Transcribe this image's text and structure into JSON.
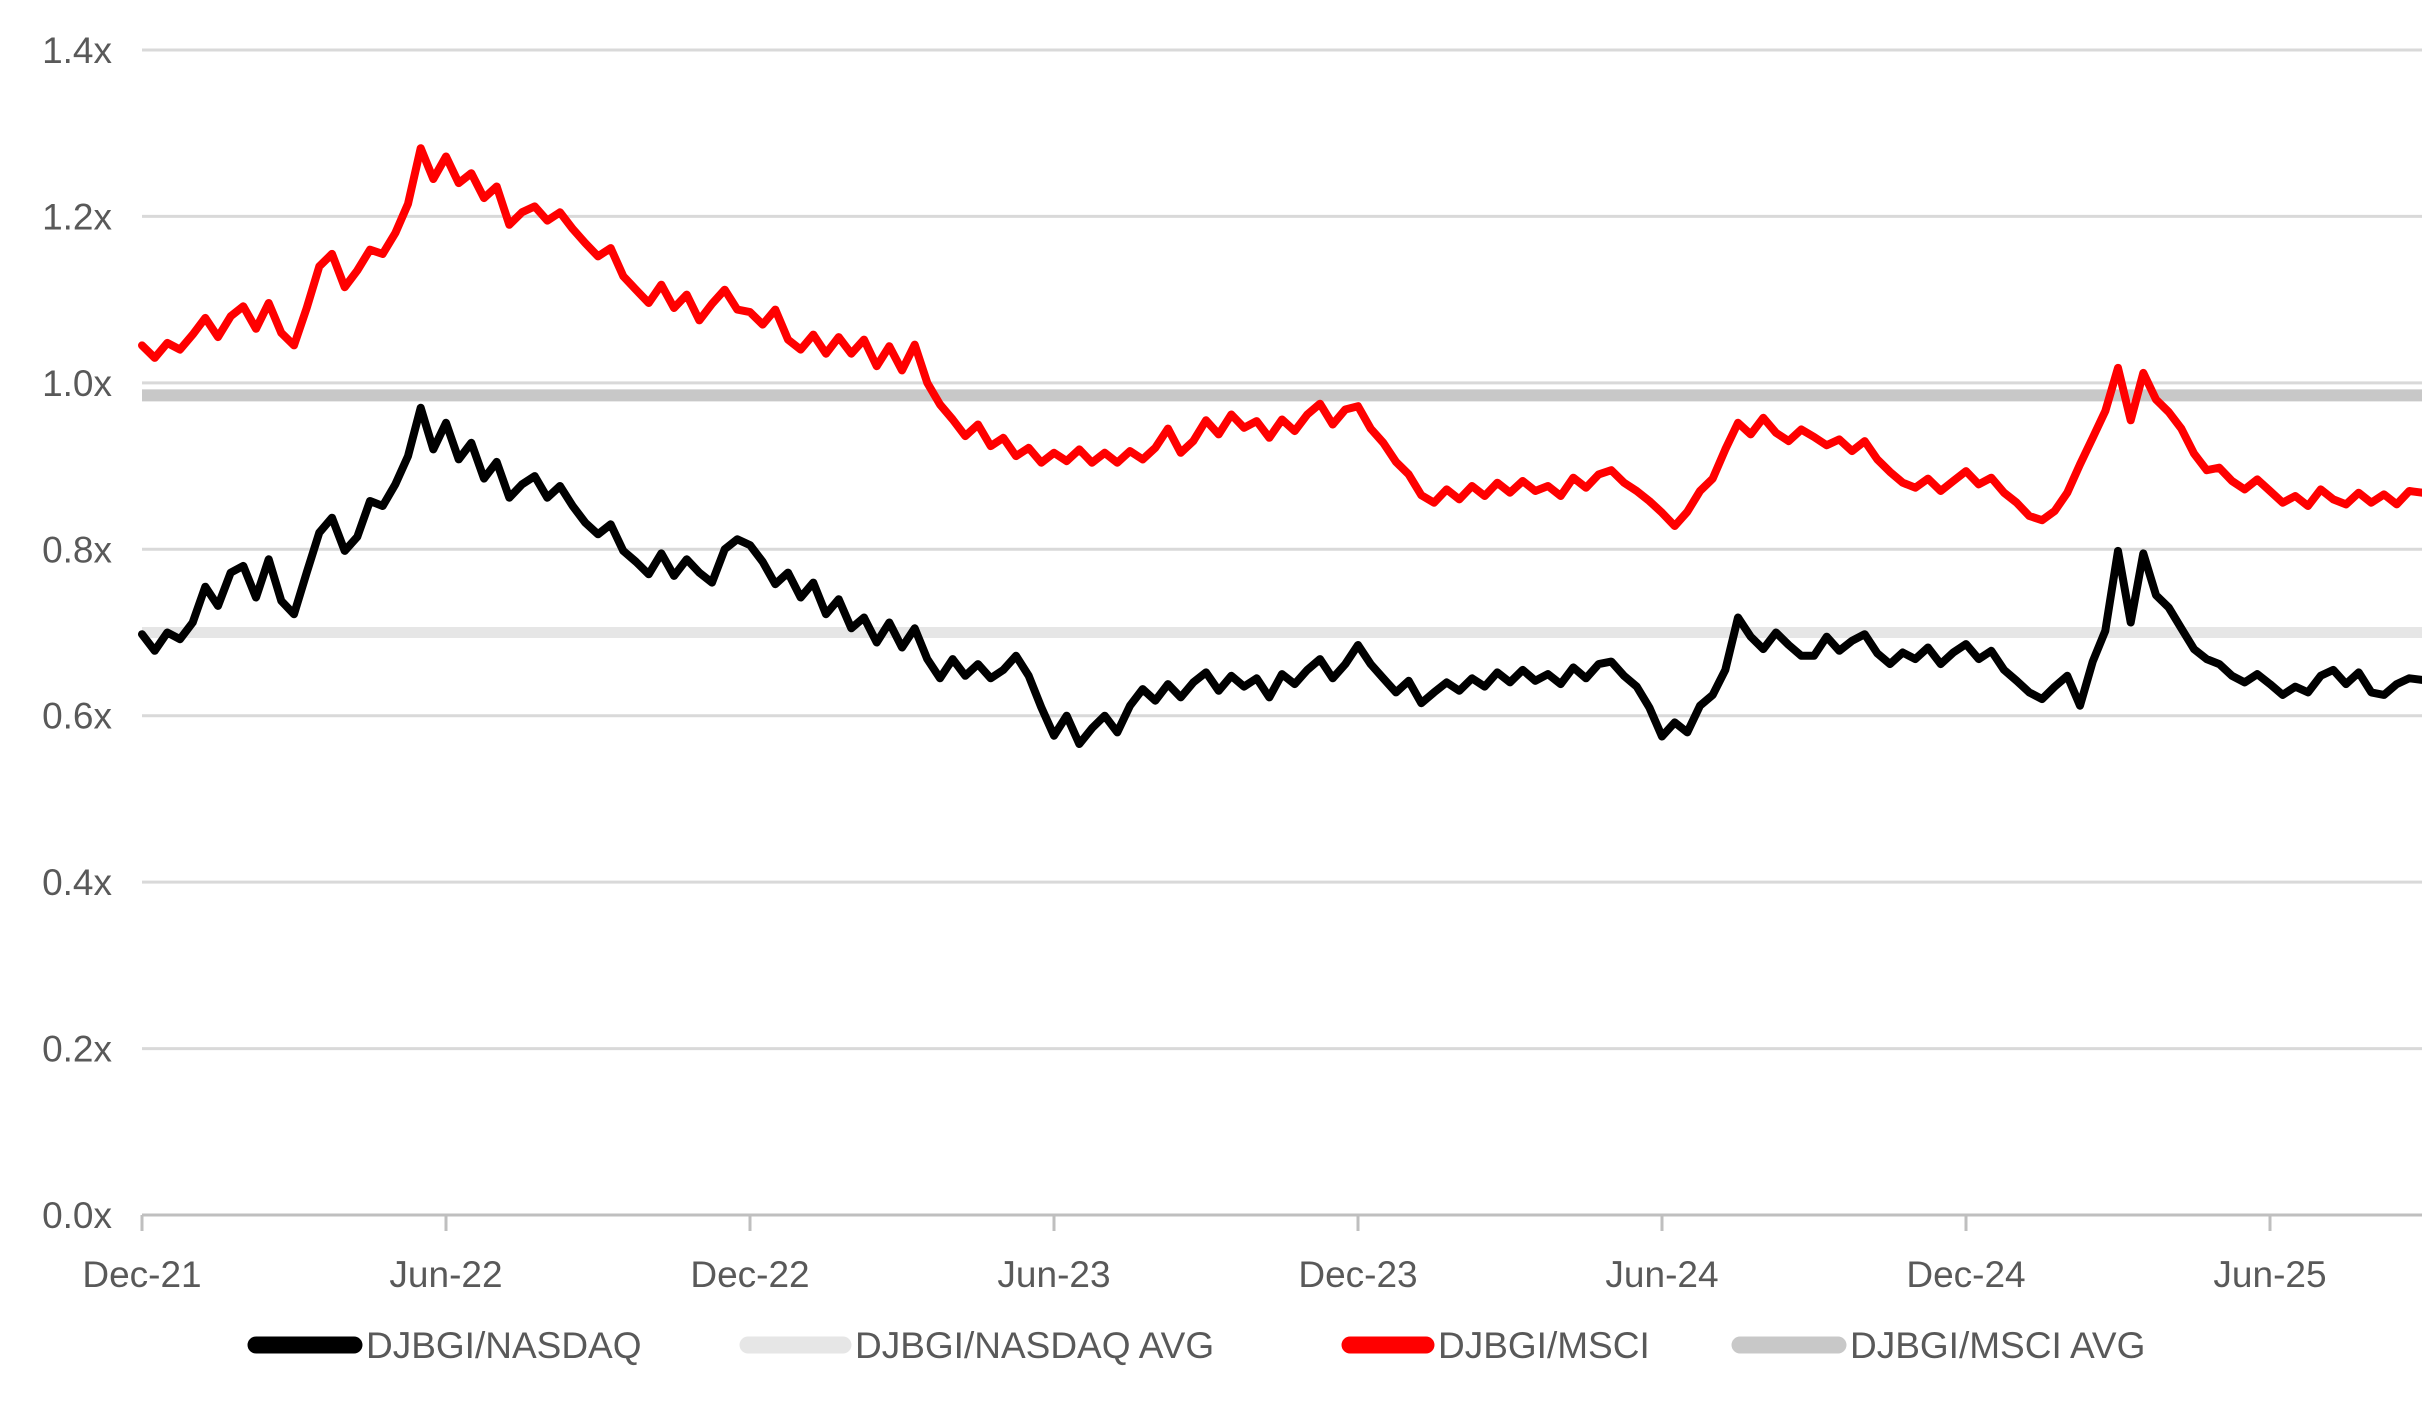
{
  "chart_data": {
    "type": "line",
    "title": "",
    "xlabel": "",
    "ylabel": "",
    "grid": true,
    "legend_position": "bottom-center",
    "y_axis": {
      "min": 0.0,
      "max": 1.4,
      "tick_values": [
        1.4,
        1.2,
        1.0,
        0.8,
        0.6,
        0.4,
        0.2,
        0.0
      ],
      "tick_labels": [
        "1.4x",
        "1.2x",
        "1.0x",
        "0.8x",
        "0.6x",
        "0.4x",
        "0.2x",
        "0.0x"
      ]
    },
    "x_axis": {
      "tick_labels": [
        "Dec-21",
        "Jun-22",
        "Dec-22",
        "Jun-23",
        "Dec-23",
        "Jun-24",
        "Dec-24",
        "Jun-25"
      ],
      "tick_month_index": [
        0,
        6,
        12,
        18,
        24,
        30,
        36,
        42
      ],
      "months_total": 45,
      "points_per_month": 4,
      "start_label": "Dec-21",
      "end_label_approx": "Aug-25"
    },
    "series": [
      {
        "name": "DJBGI/NASDAQ",
        "color": "#000000",
        "stroke_width": 8,
        "values": [
          0.698,
          0.678,
          0.7,
          0.692,
          0.712,
          0.755,
          0.732,
          0.772,
          0.78,
          0.742,
          0.788,
          0.738,
          0.722,
          0.772,
          0.82,
          0.838,
          0.798,
          0.815,
          0.858,
          0.852,
          0.878,
          0.912,
          0.97,
          0.92,
          0.952,
          0.908,
          0.928,
          0.885,
          0.905,
          0.862,
          0.878,
          0.888,
          0.862,
          0.876,
          0.852,
          0.832,
          0.818,
          0.83,
          0.798,
          0.785,
          0.77,
          0.795,
          0.768,
          0.788,
          0.772,
          0.76,
          0.8,
          0.812,
          0.805,
          0.785,
          0.758,
          0.772,
          0.742,
          0.76,
          0.722,
          0.74,
          0.705,
          0.718,
          0.688,
          0.712,
          0.682,
          0.705,
          0.668,
          0.645,
          0.668,
          0.648,
          0.662,
          0.645,
          0.655,
          0.672,
          0.648,
          0.61,
          0.576,
          0.6,
          0.566,
          0.585,
          0.6,
          0.58,
          0.612,
          0.632,
          0.618,
          0.638,
          0.622,
          0.64,
          0.652,
          0.63,
          0.648,
          0.635,
          0.645,
          0.622,
          0.65,
          0.638,
          0.655,
          0.668,
          0.645,
          0.662,
          0.685,
          0.662,
          0.645,
          0.628,
          0.642,
          0.615,
          0.628,
          0.64,
          0.63,
          0.645,
          0.635,
          0.652,
          0.64,
          0.655,
          0.642,
          0.65,
          0.638,
          0.658,
          0.645,
          0.662,
          0.665,
          0.648,
          0.635,
          0.61,
          0.575,
          0.592,
          0.58,
          0.612,
          0.625,
          0.655,
          0.718,
          0.695,
          0.68,
          0.7,
          0.685,
          0.672,
          0.672,
          0.695,
          0.678,
          0.69,
          0.698,
          0.675,
          0.662,
          0.676,
          0.668,
          0.682,
          0.662,
          0.676,
          0.686,
          0.668,
          0.678,
          0.655,
          0.642,
          0.628,
          0.62,
          0.635,
          0.648,
          0.612,
          0.665,
          0.702,
          0.798,
          0.712,
          0.795,
          0.745,
          0.73,
          0.705,
          0.68,
          0.668,
          0.662,
          0.648,
          0.64,
          0.65,
          0.638,
          0.625,
          0.635,
          0.628,
          0.648,
          0.655,
          0.638,
          0.652,
          0.628,
          0.625,
          0.638,
          0.645,
          0.643
        ]
      },
      {
        "name": "DJBGI/MSCI",
        "color": "#FF0000",
        "stroke_width": 8,
        "values": [
          1.045,
          1.03,
          1.048,
          1.04,
          1.058,
          1.078,
          1.055,
          1.08,
          1.092,
          1.065,
          1.096,
          1.06,
          1.045,
          1.09,
          1.14,
          1.155,
          1.115,
          1.135,
          1.16,
          1.155,
          1.18,
          1.215,
          1.282,
          1.245,
          1.272,
          1.24,
          1.252,
          1.222,
          1.236,
          1.19,
          1.205,
          1.212,
          1.195,
          1.205,
          1.185,
          1.168,
          1.152,
          1.162,
          1.128,
          1.112,
          1.096,
          1.118,
          1.09,
          1.106,
          1.075,
          1.095,
          1.112,
          1.088,
          1.085,
          1.07,
          1.088,
          1.052,
          1.04,
          1.058,
          1.035,
          1.055,
          1.035,
          1.052,
          1.02,
          1.044,
          1.015,
          1.046,
          1.0,
          0.974,
          0.956,
          0.936,
          0.95,
          0.924,
          0.934,
          0.912,
          0.922,
          0.904,
          0.916,
          0.906,
          0.92,
          0.904,
          0.916,
          0.904,
          0.918,
          0.908,
          0.922,
          0.945,
          0.916,
          0.93,
          0.955,
          0.938,
          0.962,
          0.946,
          0.954,
          0.934,
          0.956,
          0.942,
          0.962,
          0.975,
          0.95,
          0.968,
          0.972,
          0.945,
          0.928,
          0.905,
          0.89,
          0.865,
          0.856,
          0.872,
          0.86,
          0.876,
          0.864,
          0.88,
          0.868,
          0.882,
          0.87,
          0.876,
          0.864,
          0.886,
          0.874,
          0.89,
          0.895,
          0.88,
          0.87,
          0.858,
          0.844,
          0.828,
          0.845,
          0.87,
          0.885,
          0.92,
          0.952,
          0.938,
          0.958,
          0.94,
          0.93,
          0.944,
          0.935,
          0.925,
          0.932,
          0.918,
          0.93,
          0.908,
          0.893,
          0.88,
          0.874,
          0.885,
          0.87,
          0.882,
          0.894,
          0.878,
          0.886,
          0.868,
          0.856,
          0.84,
          0.835,
          0.846,
          0.868,
          0.902,
          0.934,
          0.966,
          1.018,
          0.955,
          1.012,
          0.98,
          0.965,
          0.945,
          0.915,
          0.895,
          0.898,
          0.882,
          0.872,
          0.884,
          0.87,
          0.856,
          0.864,
          0.852,
          0.872,
          0.86,
          0.854,
          0.868,
          0.856,
          0.866,
          0.854,
          0.87,
          0.868
        ]
      }
    ],
    "averages": [
      {
        "name": "DJBGI/NASDAQ AVG",
        "color": "#E6E6E6",
        "stroke_width": 11,
        "value": 0.7
      },
      {
        "name": "DJBGI/MSCI AVG",
        "color": "#C8C8C8",
        "stroke_width": 12,
        "value": 0.985
      }
    ],
    "legend_order": [
      "DJBGI/NASDAQ",
      "DJBGI/NASDAQ AVG",
      "DJBGI/MSCI",
      "DJBGI/MSCI AVG"
    ]
  },
  "colors": {
    "background": "#FFFFFF",
    "gridline": "#D9D9D9",
    "axis_line": "#BFBFBF",
    "tick_text": "#595959",
    "legend_text": "#595959",
    "series_nasdaq": "#000000",
    "series_msci": "#FF0000",
    "avg_nasdaq": "#E6E6E6",
    "avg_msci": "#C8C8C8"
  }
}
